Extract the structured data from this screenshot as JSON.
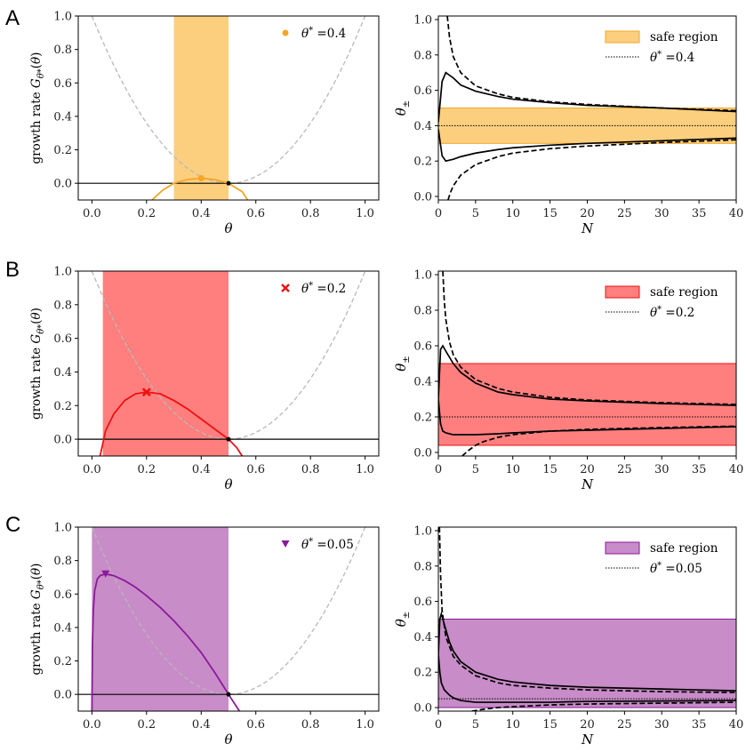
{
  "chart_data": [
    {
      "panel": "A",
      "side": "left",
      "type": "line",
      "xlabel": "θ",
      "ylabel": "growth rate G_{θ*}(θ)",
      "xlim": [
        -0.05,
        1.05
      ],
      "ylim": [
        -0.1,
        1.0
      ],
      "xticks": [
        "0.0",
        "0.2",
        "0.4",
        "0.6",
        "0.8",
        "1.0"
      ],
      "yticks": [
        "0.0",
        "0.2",
        "0.4",
        "0.6",
        "0.8",
        "1.0"
      ],
      "theta_star": 0.4,
      "color": "#f5a623",
      "shade": "#fccf7f",
      "safe_region": [
        0.3,
        0.5
      ],
      "marker": "circle",
      "marker_point": [
        0.4,
        0.03
      ],
      "legend": "θ* =0.4",
      "series": [
        {
          "name": "growth rate",
          "x": [
            0.22,
            0.26,
            0.3,
            0.35,
            0.4,
            0.45,
            0.5,
            0.55,
            0.57
          ],
          "y": [
            -0.1,
            -0.04,
            0.0,
            0.022,
            0.03,
            0.022,
            0.0,
            -0.05,
            -0.1
          ]
        },
        {
          "name": "reference parabola (dashed)",
          "x": [
            0.0,
            0.1,
            0.2,
            0.3,
            0.4,
            0.5,
            0.6,
            0.7,
            0.8,
            0.9,
            1.0
          ],
          "y": [
            1.0,
            0.64,
            0.36,
            0.16,
            0.04,
            0.0,
            0.04,
            0.16,
            0.36,
            0.64,
            1.0
          ]
        }
      ]
    },
    {
      "panel": "A",
      "side": "right",
      "type": "line",
      "xlabel": "N",
      "ylabel": "θ±",
      "xlim": [
        0,
        40
      ],
      "ylim": [
        -0.02,
        1.02
      ],
      "xticks": [
        "0",
        "5",
        "10",
        "15",
        "20",
        "25",
        "30",
        "35",
        "40"
      ],
      "yticks": [
        "0.0",
        "0.2",
        "0.4",
        "0.6",
        "0.8",
        "1.0"
      ],
      "theta_star": 0.4,
      "shade": "#fccf7f",
      "edge": "#f5a623",
      "safe_region": [
        0.3,
        0.5
      ],
      "legend": [
        "safe region",
        "θ* =0.4"
      ],
      "series": [
        {
          "name": "upper solid",
          "x": [
            0,
            0.5,
            1,
            2,
            3,
            5,
            8,
            10,
            15,
            20,
            30,
            40
          ],
          "y": [
            0.42,
            0.65,
            0.7,
            0.67,
            0.63,
            0.595,
            0.565,
            0.55,
            0.53,
            0.515,
            0.5,
            0.48
          ]
        },
        {
          "name": "lower solid",
          "x": [
            0,
            0.5,
            1,
            2,
            3,
            5,
            8,
            10,
            15,
            20,
            30,
            40
          ],
          "y": [
            0.38,
            0.23,
            0.2,
            0.21,
            0.225,
            0.245,
            0.265,
            0.275,
            0.29,
            0.3,
            0.315,
            0.33
          ]
        },
        {
          "name": "upper dashed",
          "x": [
            1.2,
            1.5,
            2,
            3,
            5,
            8,
            10,
            15,
            20,
            30,
            40
          ],
          "y": [
            1.02,
            0.9,
            0.79,
            0.7,
            0.625,
            0.58,
            0.56,
            0.535,
            0.52,
            0.5,
            0.485
          ]
        },
        {
          "name": "lower dashed",
          "x": [
            1.3,
            1.6,
            2,
            3,
            5,
            8,
            10,
            15,
            20,
            30,
            40
          ],
          "y": [
            -0.02,
            0.02,
            0.06,
            0.12,
            0.18,
            0.225,
            0.245,
            0.27,
            0.285,
            0.305,
            0.32
          ]
        }
      ]
    },
    {
      "panel": "B",
      "side": "left",
      "type": "line",
      "xlabel": "θ",
      "ylabel": "growth rate G_{θ*}(θ)",
      "xlim": [
        -0.05,
        1.05
      ],
      "ylim": [
        -0.1,
        1.0
      ],
      "xticks": [
        "0.0",
        "0.2",
        "0.4",
        "0.6",
        "0.8",
        "1.0"
      ],
      "yticks": [
        "0.0",
        "0.2",
        "0.4",
        "0.6",
        "0.8",
        "1.0"
      ],
      "theta_star": 0.2,
      "color": "#ee1111",
      "shade": "#ff7f7f",
      "safe_region": [
        0.04,
        0.5
      ],
      "marker": "x",
      "marker_point": [
        0.2,
        0.28
      ],
      "legend": "θ* =0.2",
      "series": [
        {
          "name": "growth rate",
          "x": [
            0.03,
            0.05,
            0.08,
            0.12,
            0.16,
            0.2,
            0.25,
            0.3,
            0.35,
            0.4,
            0.45,
            0.5,
            0.53,
            0.55
          ],
          "y": [
            -0.1,
            0.05,
            0.15,
            0.23,
            0.27,
            0.28,
            0.27,
            0.23,
            0.18,
            0.12,
            0.06,
            0.0,
            -0.05,
            -0.1
          ]
        },
        {
          "name": "reference parabola (dashed)",
          "x": [
            0.0,
            0.1,
            0.2,
            0.3,
            0.4,
            0.5,
            0.6,
            0.7,
            0.8,
            0.9,
            1.0
          ],
          "y": [
            1.0,
            0.64,
            0.36,
            0.16,
            0.04,
            0.0,
            0.04,
            0.16,
            0.36,
            0.64,
            1.0
          ]
        }
      ]
    },
    {
      "panel": "B",
      "side": "right",
      "type": "line",
      "xlabel": "N",
      "ylabel": "θ±",
      "xlim": [
        0,
        40
      ],
      "ylim": [
        -0.02,
        1.02
      ],
      "xticks": [
        "0",
        "5",
        "10",
        "15",
        "20",
        "25",
        "30",
        "35",
        "40"
      ],
      "yticks": [
        "0.0",
        "0.2",
        "0.4",
        "0.6",
        "0.8",
        "1.0"
      ],
      "theta_star": 0.2,
      "shade": "#ff7f7f",
      "edge": "#ee1111",
      "safe_region": [
        0.04,
        0.5
      ],
      "legend": [
        "safe region",
        "θ* =0.2"
      ],
      "series": [
        {
          "name": "upper solid",
          "x": [
            0,
            0.3,
            0.6,
            1,
            2,
            3,
            5,
            8,
            10,
            15,
            20,
            30,
            40
          ],
          "y": [
            0.3,
            0.58,
            0.6,
            0.57,
            0.5,
            0.45,
            0.39,
            0.34,
            0.325,
            0.3,
            0.29,
            0.275,
            0.265
          ]
        },
        {
          "name": "lower solid",
          "x": [
            0,
            0.3,
            0.6,
            1,
            2,
            3,
            5,
            8,
            10,
            15,
            20,
            30,
            40
          ],
          "y": [
            0.3,
            0.16,
            0.12,
            0.11,
            0.1,
            0.1,
            0.1,
            0.105,
            0.11,
            0.12,
            0.125,
            0.135,
            0.145
          ]
        },
        {
          "name": "upper dashed",
          "x": [
            0.6,
            0.8,
            1,
            1.5,
            2,
            3,
            5,
            8,
            10,
            15,
            20,
            30,
            40
          ],
          "y": [
            1.02,
            0.85,
            0.75,
            0.62,
            0.55,
            0.48,
            0.41,
            0.36,
            0.34,
            0.31,
            0.295,
            0.28,
            0.27
          ]
        },
        {
          "name": "lower dashed",
          "x": [
            3.2,
            4,
            5,
            6,
            8,
            10,
            15,
            20,
            30,
            40
          ],
          "y": [
            -0.02,
            0.01,
            0.04,
            0.06,
            0.085,
            0.1,
            0.12,
            0.13,
            0.14,
            0.148
          ]
        }
      ]
    },
    {
      "panel": "C",
      "side": "left",
      "type": "line",
      "xlabel": "θ",
      "ylabel": "growth rate G_{θ*}(θ)",
      "xlim": [
        -0.05,
        1.05
      ],
      "ylim": [
        -0.1,
        1.0
      ],
      "xticks": [
        "0.0",
        "0.2",
        "0.4",
        "0.6",
        "0.8",
        "1.0"
      ],
      "yticks": [
        "0.0",
        "0.2",
        "0.4",
        "0.6",
        "0.8",
        "1.0"
      ],
      "theta_star": 0.05,
      "color": "#8b1a9b",
      "shade": "#c88cc8",
      "safe_region": [
        0.0,
        0.5
      ],
      "marker": "triangle",
      "marker_point": [
        0.05,
        0.72
      ],
      "legend": "θ* =0.05",
      "series": [
        {
          "name": "growth rate",
          "x": [
            0.0,
            0.002,
            0.005,
            0.01,
            0.02,
            0.03,
            0.05,
            0.08,
            0.12,
            0.16,
            0.2,
            0.25,
            0.3,
            0.35,
            0.4,
            0.45,
            0.5,
            0.52,
            0.54
          ],
          "y": [
            -0.1,
            0.3,
            0.5,
            0.62,
            0.69,
            0.71,
            0.72,
            0.71,
            0.68,
            0.64,
            0.59,
            0.52,
            0.44,
            0.35,
            0.25,
            0.13,
            0.0,
            -0.05,
            -0.1
          ]
        },
        {
          "name": "reference parabola (dashed)",
          "x": [
            0.0,
            0.1,
            0.2,
            0.3,
            0.4,
            0.5,
            0.6,
            0.7,
            0.8,
            0.9,
            1.0
          ],
          "y": [
            1.0,
            0.64,
            0.36,
            0.16,
            0.04,
            0.0,
            0.04,
            0.16,
            0.36,
            0.64,
            1.0
          ]
        }
      ]
    },
    {
      "panel": "C",
      "side": "right",
      "type": "line",
      "xlabel": "N",
      "ylabel": "θ±",
      "xlim": [
        0,
        40
      ],
      "ylim": [
        -0.02,
        1.02
      ],
      "xticks": [
        "0",
        "5",
        "10",
        "15",
        "20",
        "25",
        "30",
        "35",
        "40"
      ],
      "yticks": [
        "0.0",
        "0.2",
        "0.4",
        "0.6",
        "0.8",
        "1.0"
      ],
      "theta_star": 0.05,
      "shade": "#c88cc8",
      "edge": "#8b1a9b",
      "safe_region": [
        0.0,
        0.5
      ],
      "legend": [
        "safe region",
        "θ* =0.05"
      ],
      "series": [
        {
          "name": "upper solid",
          "x": [
            0,
            0.2,
            0.4,
            0.8,
            1.5,
            2,
            3,
            5,
            8,
            10,
            15,
            20,
            30,
            40
          ],
          "y": [
            0.3,
            0.5,
            0.53,
            0.47,
            0.37,
            0.32,
            0.26,
            0.2,
            0.16,
            0.145,
            0.125,
            0.115,
            0.105,
            0.095
          ]
        },
        {
          "name": "lower solid",
          "x": [
            0,
            0.2,
            0.4,
            0.8,
            1.5,
            2,
            3,
            5,
            8,
            10,
            15,
            20,
            30,
            40
          ],
          "y": [
            0.3,
            0.2,
            0.14,
            0.1,
            0.07,
            0.055,
            0.04,
            0.03,
            0.03,
            0.03,
            0.03,
            0.035,
            0.037,
            0.04
          ]
        },
        {
          "name": "upper dashed",
          "x": [
            0.15,
            0.3,
            0.5,
            1,
            2,
            3,
            5,
            8,
            10,
            15,
            20,
            30,
            40
          ],
          "y": [
            1.02,
            0.75,
            0.55,
            0.4,
            0.29,
            0.24,
            0.18,
            0.14,
            0.125,
            0.11,
            0.1,
            0.09,
            0.085
          ]
        },
        {
          "name": "lower dashed",
          "x": [
            4.5,
            6,
            8,
            10,
            15,
            20,
            30,
            40
          ],
          "y": [
            -0.02,
            -0.01,
            0.0,
            0.005,
            0.015,
            0.02,
            0.025,
            0.03
          ]
        }
      ]
    }
  ]
}
